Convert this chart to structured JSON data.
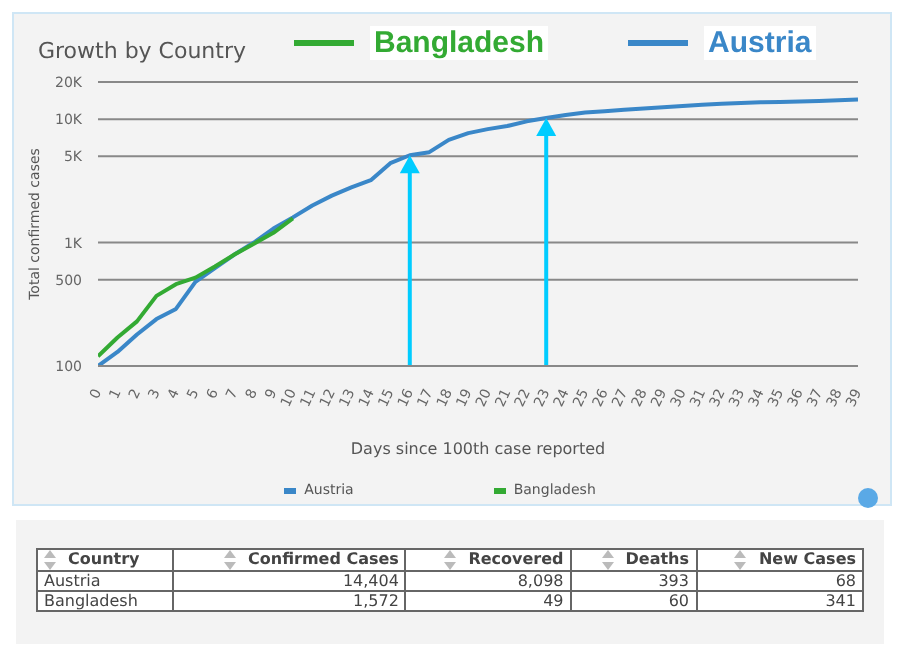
{
  "chart_data": [
    {
      "type": "line",
      "title": "Growth by Country",
      "xlabel": "Days since 100th case reported",
      "ylabel": "Total confirmed cases",
      "x": [
        0,
        1,
        2,
        3,
        4,
        5,
        6,
        7,
        8,
        9,
        10,
        11,
        12,
        13,
        14,
        15,
        16,
        17,
        18,
        19,
        20,
        21,
        22,
        23,
        24,
        25,
        26,
        27,
        28,
        29,
        30,
        31,
        32,
        33,
        34,
        35,
        36,
        37,
        38,
        39
      ],
      "series": [
        {
          "name": "Austria",
          "color": "#3a87c8",
          "values": [
            100,
            130,
            180,
            240,
            290,
            480,
            620,
            800,
            1000,
            1300,
            1600,
            2000,
            2400,
            2800,
            3200,
            4400,
            5100,
            5400,
            6800,
            7700,
            8300,
            8800,
            9600,
            10200,
            10800,
            11300,
            11600,
            11900,
            12200,
            12500,
            12800,
            13100,
            13300,
            13500,
            13700,
            13800,
            13900,
            14000,
            14200,
            14400
          ]
        },
        {
          "name": "Bangladesh",
          "color": "#33aa33",
          "values": [
            120,
            170,
            230,
            370,
            460,
            520,
            640,
            800,
            980,
            1200,
            1572,
            null,
            null,
            null,
            null,
            null,
            null,
            null,
            null,
            null,
            null,
            null,
            null,
            null,
            null,
            null,
            null,
            null,
            null,
            null,
            null,
            null,
            null,
            null,
            null,
            null,
            null,
            null,
            null,
            null
          ]
        }
      ],
      "xlim": [
        0,
        39
      ],
      "xticks": [
        0,
        1,
        2,
        3,
        4,
        5,
        6,
        7,
        8,
        9,
        10,
        11,
        12,
        13,
        14,
        15,
        16,
        17,
        18,
        19,
        20,
        21,
        22,
        23,
        24,
        25,
        26,
        27,
        28,
        29,
        30,
        31,
        32,
        33,
        34,
        35,
        36,
        37,
        38,
        39
      ],
      "ylim": [
        100,
        20000
      ],
      "yticks": [
        100,
        500,
        {
          "value": 1000,
          "label": "1K"
        },
        {
          "value": 5000,
          "label": "5K"
        },
        {
          "value": 10000,
          "label": "10K"
        },
        {
          "value": 20000,
          "label": "20K"
        }
      ],
      "log": "y",
      "grid": "y",
      "legend": "bottom",
      "marker": "none",
      "line_style": "solid",
      "ref_lines": [
        {
          "axis": "x",
          "value": 16,
          "color": "#00ccff"
        },
        {
          "axis": "x",
          "value": 23,
          "color": "#00ccff"
        }
      ],
      "annotations": [
        "Bangladesh",
        "Austria"
      ]
    },
    {
      "type": "other",
      "annotations": [
        "Country",
        "Confirmed Cases",
        "Recovered",
        "Deaths",
        "New Cases",
        "Austria",
        "14,404",
        "8,098",
        "393",
        "68",
        "Bangladesh",
        "1,572",
        "49",
        "60",
        "341"
      ]
    }
  ]
}
